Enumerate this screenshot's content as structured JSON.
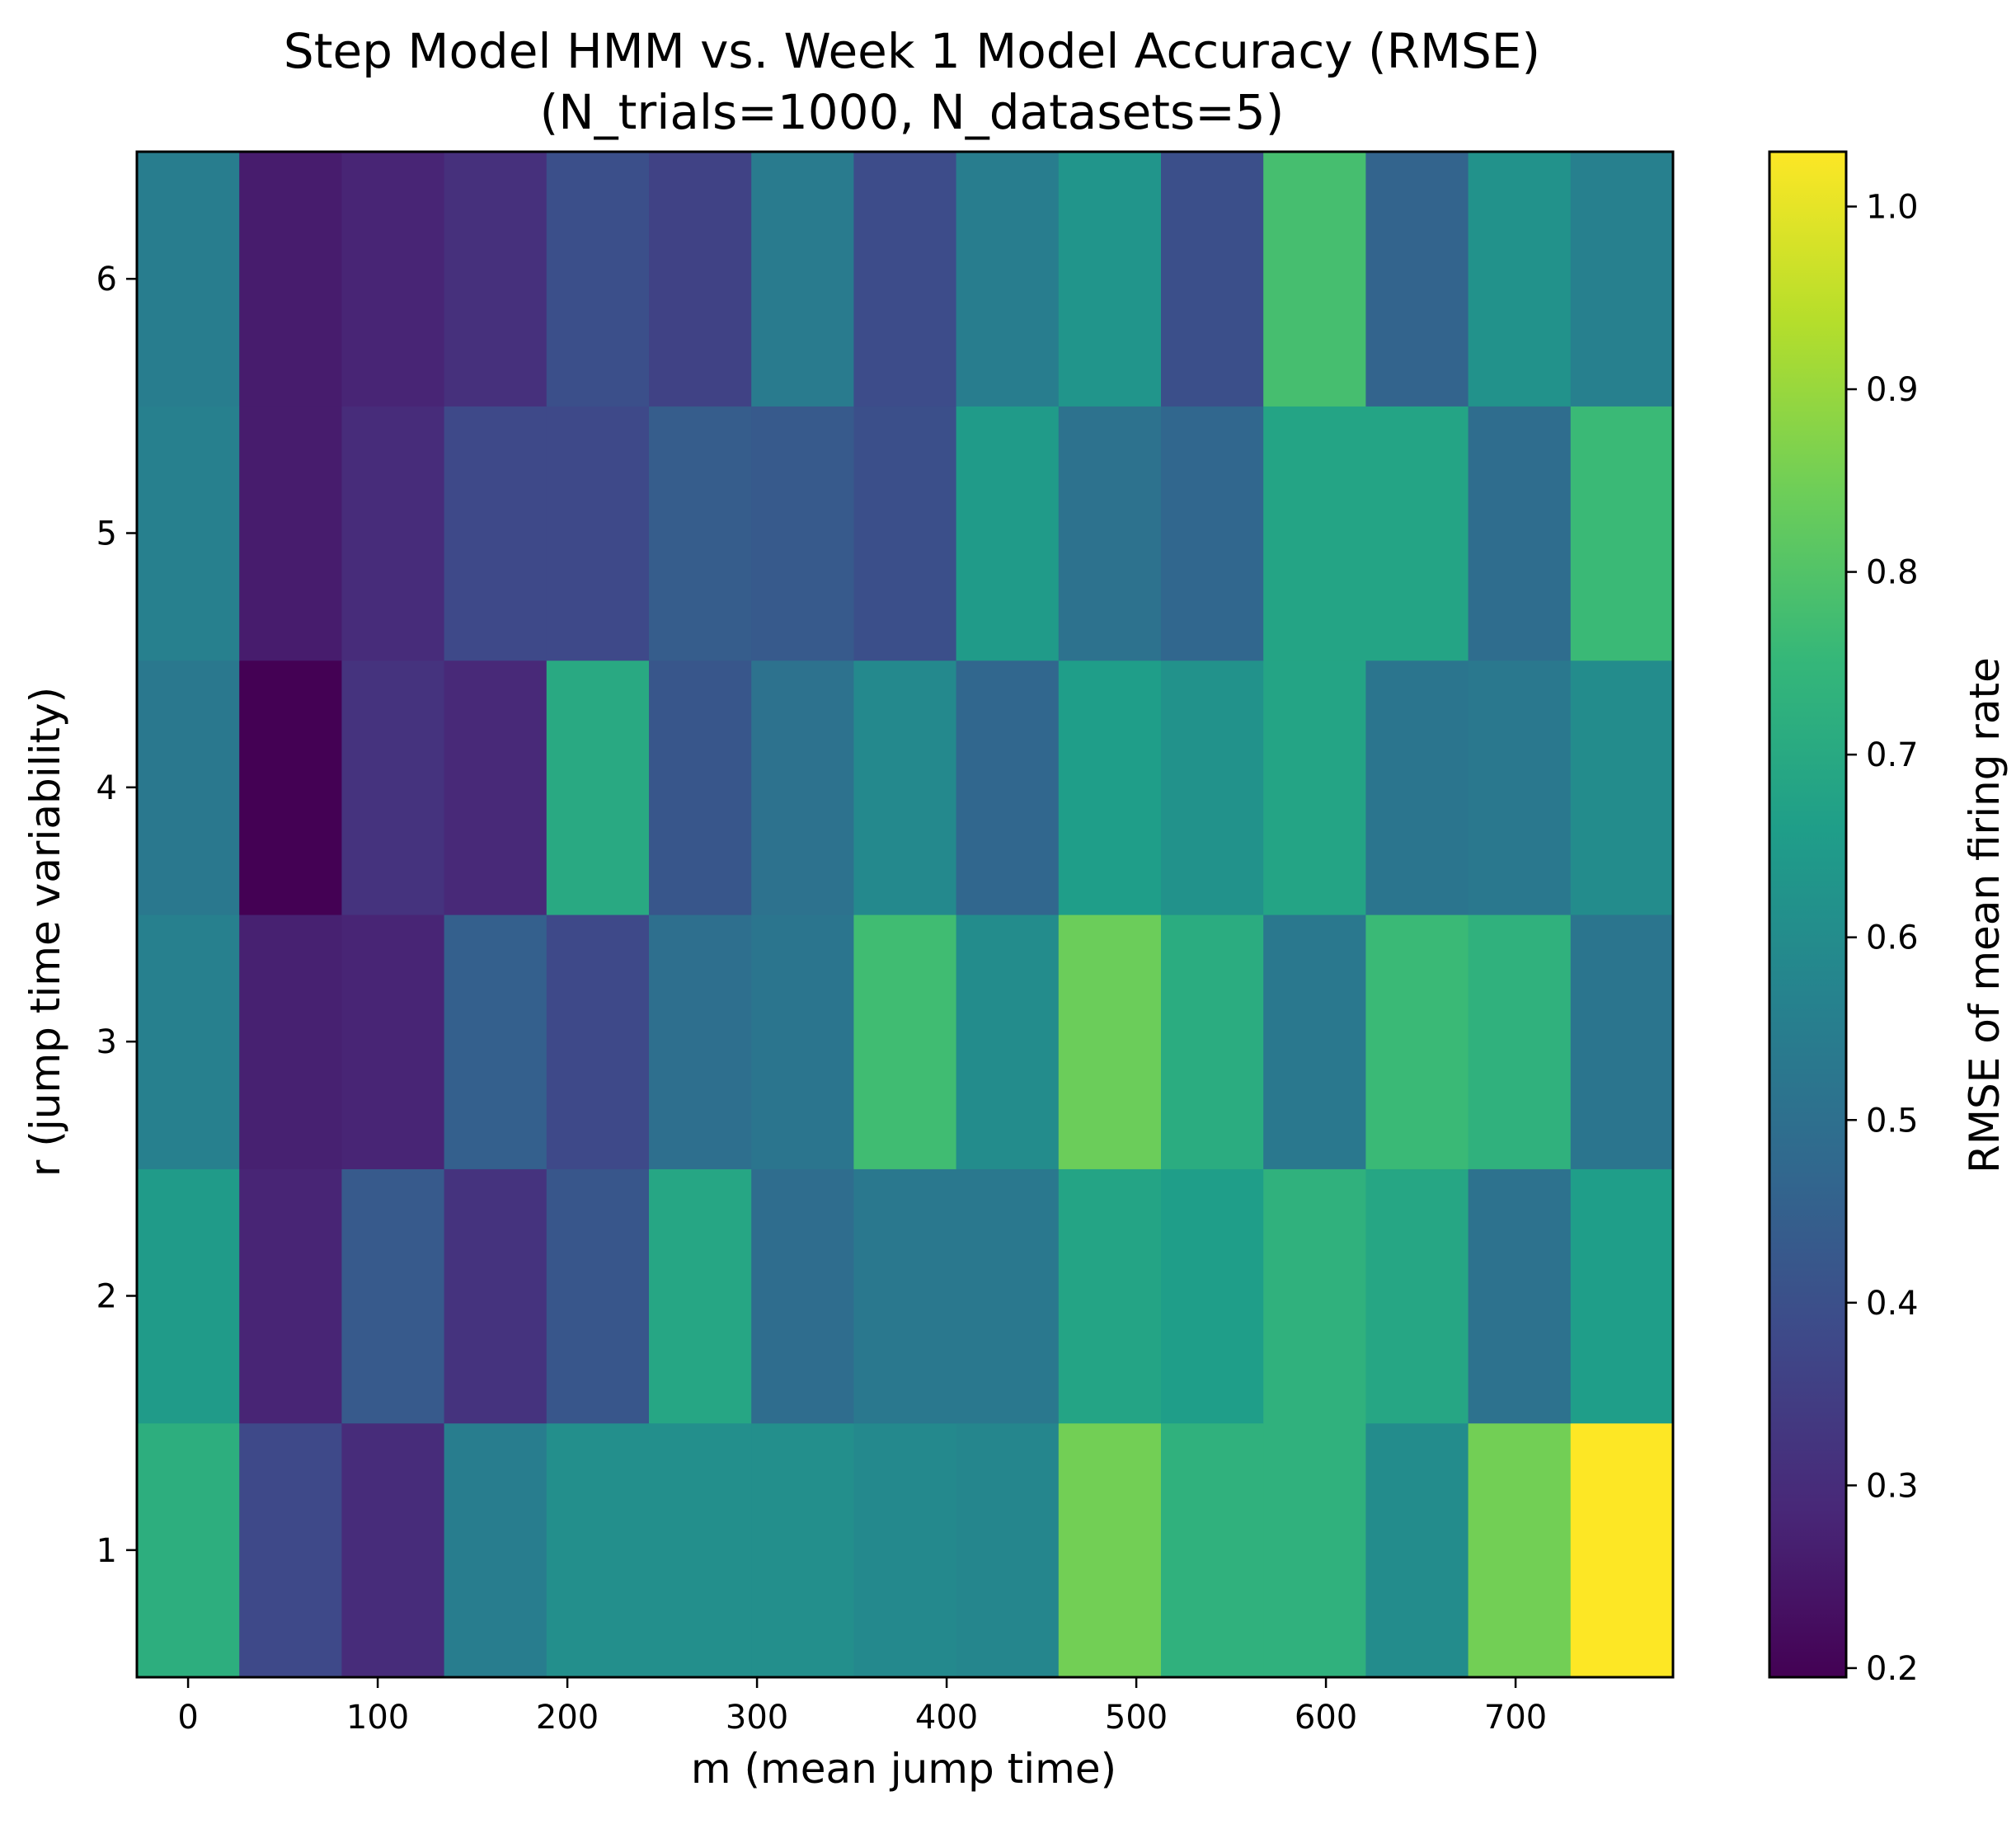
{
  "chart_data": {
    "type": "heatmap",
    "title": "Step Model HMM vs. Week 1 Model Accuracy (RMSE)",
    "subtitle": "(N_trials=1000, N_datasets=5)",
    "xlabel": "m (mean jump time)",
    "ylabel": "r (jump time variability)",
    "colorbar_label": "RMSE of mean firing rate",
    "colormap": "viridis",
    "x_ticks": [
      "0",
      "100",
      "200",
      "300",
      "400",
      "500",
      "600",
      "700"
    ],
    "y_ticks": [
      "1",
      "2",
      "3",
      "4",
      "5",
      "6"
    ],
    "colorbar_ticks": [
      "0.2",
      "0.3",
      "0.4",
      "0.5",
      "0.6",
      "0.7",
      "0.8",
      "0.9",
      "1.0"
    ],
    "x": [
      0,
      54,
      108,
      162,
      216,
      270,
      324,
      378,
      432,
      486,
      540,
      594,
      648,
      702,
      756
    ],
    "y": [
      1,
      2,
      3,
      4,
      5,
      6
    ],
    "xlim": [
      -27,
      783
    ],
    "ylim": [
      0.5,
      6.5
    ],
    "vmin": 0.195,
    "vmax": 1.03,
    "values": [
      [
        0.72,
        0.38,
        0.3,
        0.55,
        0.61,
        0.61,
        0.61,
        0.59,
        0.58,
        0.85,
        0.73,
        0.73,
        0.6,
        0.85,
        1.03
      ],
      [
        0.65,
        0.28,
        0.43,
        0.32,
        0.42,
        0.69,
        0.49,
        0.53,
        0.53,
        0.68,
        0.66,
        0.73,
        0.69,
        0.51,
        0.66
      ],
      [
        0.56,
        0.27,
        0.28,
        0.45,
        0.38,
        0.5,
        0.52,
        0.77,
        0.6,
        0.84,
        0.71,
        0.53,
        0.76,
        0.73,
        0.52
      ],
      [
        0.53,
        0.195,
        0.32,
        0.29,
        0.7,
        0.42,
        0.51,
        0.59,
        0.47,
        0.66,
        0.62,
        0.68,
        0.52,
        0.53,
        0.6
      ],
      [
        0.56,
        0.26,
        0.3,
        0.38,
        0.38,
        0.44,
        0.43,
        0.4,
        0.65,
        0.51,
        0.47,
        0.68,
        0.68,
        0.49,
        0.76
      ],
      [
        0.55,
        0.26,
        0.28,
        0.31,
        0.4,
        0.36,
        0.54,
        0.39,
        0.55,
        0.63,
        0.4,
        0.78,
        0.46,
        0.62,
        0.56
      ]
    ]
  }
}
